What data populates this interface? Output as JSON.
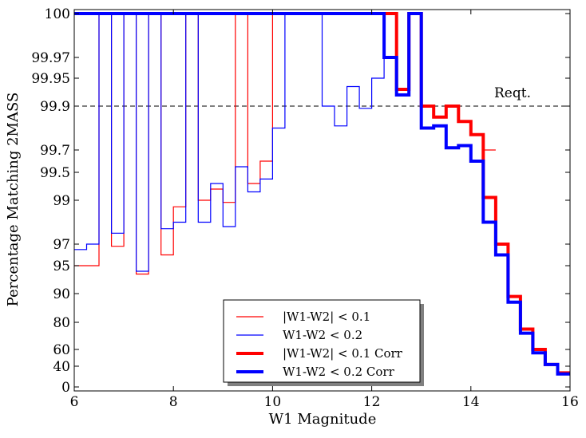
{
  "chart_data": {
    "type": "line",
    "step": true,
    "xlabel": "W1 Magnitude",
    "ylabel": "Percentage Matching 2MASS",
    "xlim": [
      6,
      16
    ],
    "x_ticks": [
      "6",
      "8",
      "10",
      "12",
      "14",
      "16"
    ],
    "y_ticks": [
      "0",
      "40",
      "60",
      "80",
      "90",
      "95",
      "97",
      "99",
      "99.5",
      "99.7",
      "99.9",
      "99.95",
      "99.97",
      "100"
    ],
    "y_scale": "nonlinear (tick values mapped as printed on the axis)",
    "reference_line": {
      "label": "Reqt.",
      "y": 99.9,
      "style": "dashed"
    },
    "legend_position": "bottom-center",
    "bin_edges": [
      6.0,
      6.25,
      6.5,
      6.75,
      7.0,
      7.25,
      7.5,
      7.75,
      8.0,
      8.25,
      8.5,
      8.75,
      9.0,
      9.25,
      9.5,
      9.75,
      10.0,
      10.25,
      10.5,
      10.75,
      11.0,
      11.25,
      11.5,
      11.75,
      12.0,
      12.25,
      12.5,
      12.75,
      13.0,
      13.25,
      13.5,
      13.75,
      14.0,
      14.25,
      14.5,
      14.75,
      15.0,
      15.25,
      15.5,
      15.75,
      16.0
    ],
    "series": [
      {
        "name": "|W1-W2| < 0.1",
        "color": "#ff0000",
        "width": "thin",
        "values": [
          95.0,
          95.0,
          100,
          96.8,
          100,
          93.5,
          100,
          96.0,
          98.7,
          100,
          99.0,
          99.2,
          98.9,
          100,
          99.3,
          99.6,
          100,
          100,
          100,
          100,
          100,
          100,
          100,
          100,
          100,
          100,
          99.93,
          100,
          99.9,
          99.85,
          99.9,
          99.83,
          99.77,
          99.7,
          null,
          null,
          null,
          null,
          null,
          null
        ]
      },
      {
        "name": "W1-W2  < 0.2",
        "color": "#0000ff",
        "width": "thin",
        "values": [
          96.5,
          97.0,
          100,
          97.5,
          100,
          94.0,
          100,
          97.7,
          98.0,
          100,
          98.0,
          99.3,
          97.8,
          99.55,
          99.15,
          99.38,
          99.8,
          100,
          100,
          100,
          99.9,
          99.81,
          99.935,
          99.89,
          99.95,
          99.97,
          99.92,
          100,
          99.8,
          99.81,
          99.71,
          99.72,
          99.6,
          null,
          null,
          null,
          null,
          null,
          null,
          null
        ]
      },
      {
        "name": "|W1-W2| < 0.1 Corr",
        "color": "#ff0000",
        "width": "thick",
        "values": [
          null,
          null,
          null,
          null,
          null,
          null,
          null,
          null,
          null,
          null,
          null,
          null,
          null,
          null,
          null,
          null,
          null,
          null,
          null,
          null,
          null,
          null,
          null,
          null,
          100,
          100,
          99.93,
          100,
          99.9,
          99.85,
          99.9,
          99.83,
          99.77,
          99.05,
          97.0,
          89.0,
          75.0,
          60.0,
          42.0,
          27.0
        ]
      },
      {
        "name": "W1-W2  < 0.2 Corr",
        "color": "#0000ff",
        "width": "thick",
        "values": [
          100,
          100,
          100,
          100,
          100,
          100,
          100,
          100,
          100,
          100,
          100,
          100,
          100,
          100,
          100,
          100,
          100,
          100,
          100,
          100,
          100,
          100,
          100,
          100,
          100,
          99.97,
          99.92,
          100,
          99.8,
          99.81,
          99.71,
          99.72,
          99.6,
          98.0,
          96.0,
          87.0,
          72.0,
          56.0,
          42.0,
          25.0
        ]
      }
    ]
  }
}
